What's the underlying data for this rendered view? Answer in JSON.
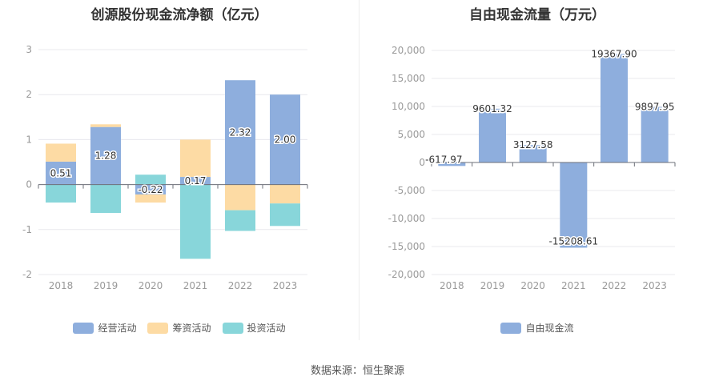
{
  "source": "数据来源：恒生聚源",
  "chart_data": [
    {
      "type": "bar",
      "title": "创源股份现金流净额（亿元）",
      "categories": [
        "2018",
        "2019",
        "2020",
        "2021",
        "2022",
        "2023"
      ],
      "ylim": [
        -2,
        3
      ],
      "yticks": [
        "3",
        "2",
        "1",
        "0",
        "-1",
        "-2"
      ],
      "stacked": true,
      "series": [
        {
          "name": "经营活动",
          "color": "#8eaedd",
          "values": [
            0.51,
            1.28,
            -0.22,
            0.17,
            2.32,
            2.0
          ],
          "labels": [
            "0.51",
            "1.28",
            "-0.22",
            "0.17",
            "2.32",
            "2.00"
          ]
        },
        {
          "name": "筹资活动",
          "color": "#fddba4",
          "values": [
            0.4,
            0.06,
            -0.18,
            0.83,
            -0.57,
            -0.42
          ]
        },
        {
          "name": "投资活动",
          "color": "#88d6da",
          "values": [
            -0.4,
            -0.63,
            0.22,
            -1.65,
            -0.46,
            -0.5
          ]
        }
      ],
      "legend_position": "bottom",
      "grid": true
    },
    {
      "type": "bar",
      "title": "自由现金流量（万元）",
      "categories": [
        "2018",
        "2019",
        "2020",
        "2021",
        "2022",
        "2023"
      ],
      "ylim": [
        -20000,
        20000
      ],
      "yticks": [
        "20,000",
        "15,000",
        "10,000",
        "5,000",
        "0",
        "-5,000",
        "-10,000",
        "-15,000",
        "-20,000"
      ],
      "series": [
        {
          "name": "自由现金流",
          "color": "#8eaedd",
          "values": [
            -617.97,
            9601.32,
            3127.58,
            -15208.61,
            19367.9,
            9897.95
          ],
          "labels": [
            "-617.97",
            "9601.32",
            "3127.58",
            "-15208.61",
            "19367.90",
            "9897.95"
          ]
        }
      ],
      "legend_position": "bottom",
      "grid": true
    }
  ]
}
